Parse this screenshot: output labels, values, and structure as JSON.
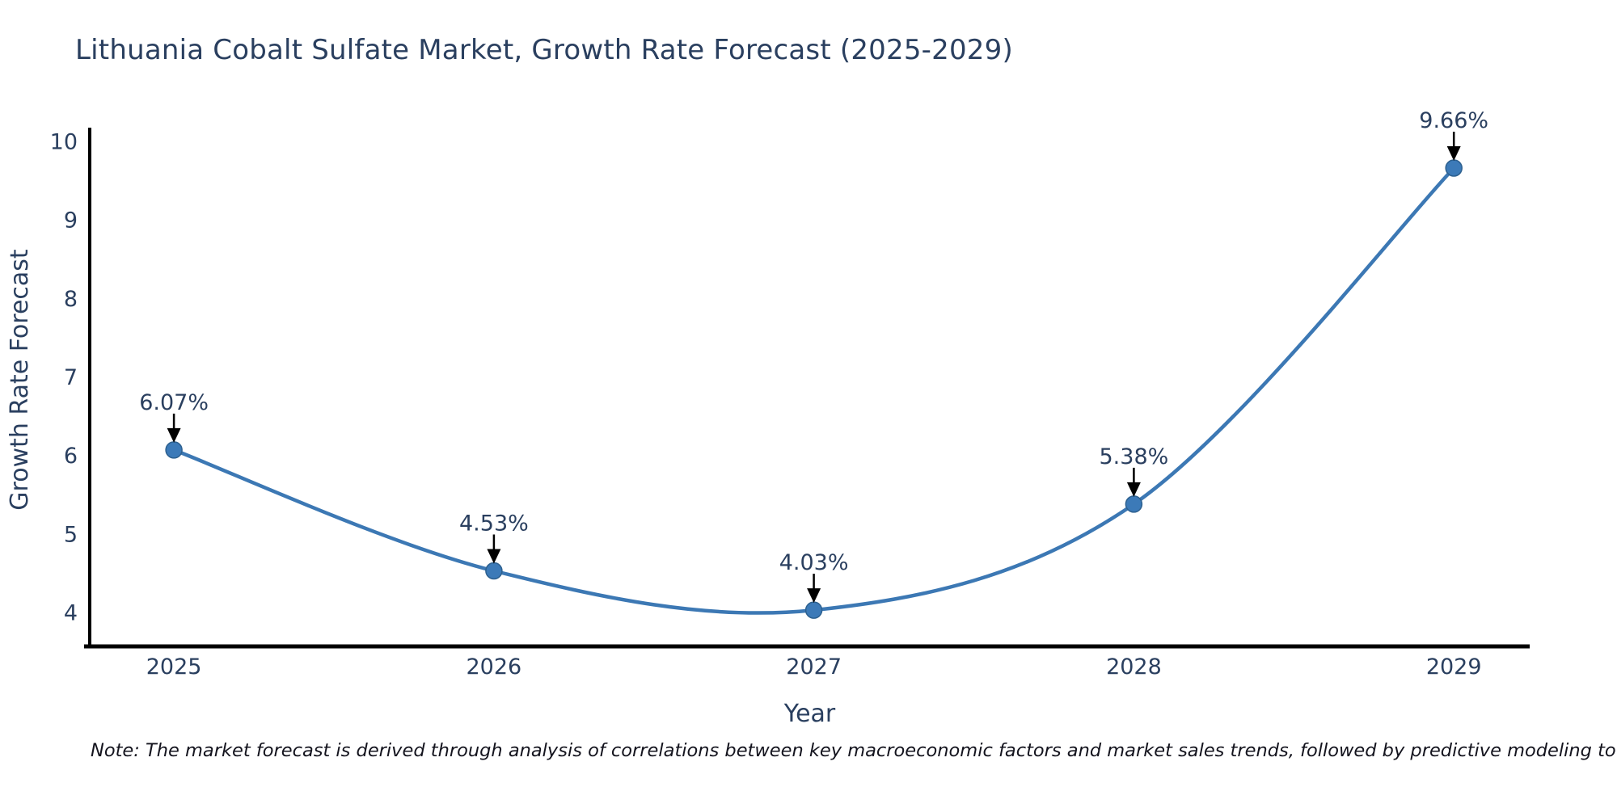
{
  "header": {
    "title": "Lithuania Cobalt Sulfate Market, Growth Rate Forecast (2025-2029)"
  },
  "footer": {
    "note": "Note: The market forecast is derived through analysis of correlations between key macroeconomic factors and market sales trends, followed by predictive modeling to project future sales"
  },
  "colors": {
    "line": "#3c78b4",
    "marker_fill": "#3c7ab8",
    "marker_edge": "#2d608f",
    "axis_line": "#000000",
    "text": "#2a3f5f",
    "annotation_text": "#2a3f5f",
    "arrow": "#000000",
    "note_text": "#14141e"
  },
  "chart_data": {
    "type": "line",
    "line_shape": "spline",
    "title": "Lithuania Cobalt Sulfate Market, Growth Rate Forecast (2025-2029)",
    "xlabel": "Year",
    "ylabel": "Growth Rate Forecast",
    "x": [
      2025,
      2026,
      2027,
      2028,
      2029
    ],
    "series": [
      {
        "name": "Growth Rate Forecast",
        "values": [
          6.07,
          4.53,
          4.03,
          5.38,
          9.66
        ]
      }
    ],
    "point_labels": [
      "6.07%",
      "4.53%",
      "4.03%",
      "5.38%",
      "9.66%"
    ],
    "xtick_labels": [
      "2025",
      "2026",
      "2027",
      "2028",
      "2029"
    ],
    "ytick_values": [
      4,
      5,
      6,
      7,
      8,
      9,
      10
    ],
    "xlim": [
      2024.737,
      2029.237
    ],
    "ylim": [
      3.568,
      10.175
    ],
    "grid": false,
    "legend": false,
    "markers": true
  }
}
